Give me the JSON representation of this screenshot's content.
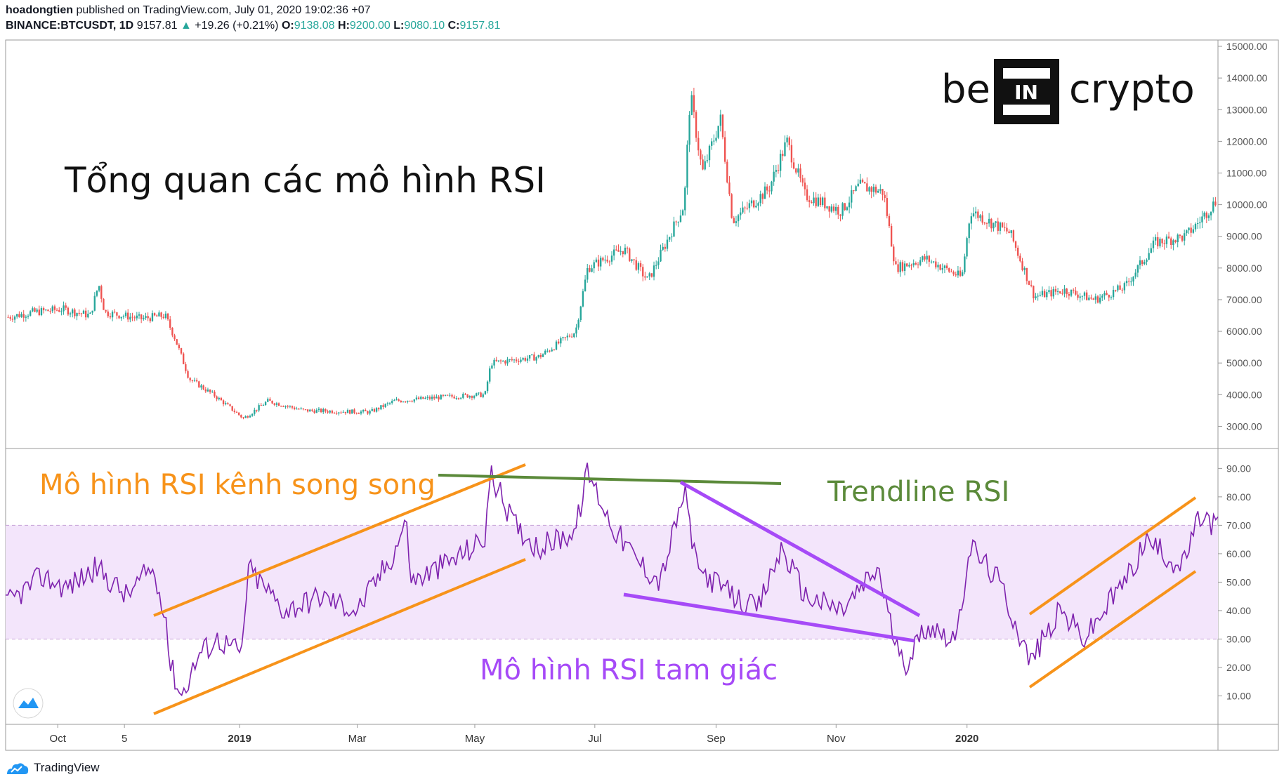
{
  "header": {
    "author": "hoadongtien",
    "published_text": "published on TradingView.com, July 01, 2020 19:02:36 +07",
    "symbol": "BINANCE:BTCUSDT, 1D",
    "last": "9157.81",
    "change": "+19.26 (+0.21%)",
    "o_label": "O:",
    "o_value": "9138.08",
    "h_label": "H:",
    "h_value": "9200.00",
    "l_label": "L:",
    "l_value": "9080.10",
    "c_label": "C:",
    "c_value": "9157.81"
  },
  "footer": {
    "brand": "TradingView",
    "brand_icon": "tradingview-cloud-icon"
  },
  "logo": {
    "left": "be",
    "mid": "IN",
    "right": "crypto"
  },
  "colors": {
    "up": "#26a69a",
    "down": "#ef5350",
    "rsi": "#7e22ae",
    "band": "#f3e5fb",
    "orange": "#f7931a",
    "green": "#5b8a3a",
    "purple": "#a64af7",
    "grid": "#b3b3b3"
  },
  "chart_data": [
    {
      "type": "candlestick",
      "title": "Tổng quan các mô hình RSI",
      "ylim": [
        2300,
        15200
      ],
      "y_ticks": [
        "3000.00",
        "4000.00",
        "5000.00",
        "6000.00",
        "7000.00",
        "8000.00",
        "9000.00",
        "10000.00",
        "11000.00",
        "12000.00",
        "13000.00",
        "14000.00",
        "15000.00"
      ],
      "x_ticks": [
        "Oct",
        "5",
        "2019",
        "Mar",
        "May",
        "Jul",
        "Sep",
        "Nov",
        "2020"
      ],
      "key_prices": [
        {
          "x": 0.0,
          "y": 6450
        },
        {
          "x": 0.02,
          "y": 6600
        },
        {
          "x": 0.045,
          "y": 6700
        },
        {
          "x": 0.068,
          "y": 6500
        },
        {
          "x": 0.075,
          "y": 7500
        },
        {
          "x": 0.08,
          "y": 6600
        },
        {
          "x": 0.11,
          "y": 6400
        },
        {
          "x": 0.13,
          "y": 6500
        },
        {
          "x": 0.138,
          "y": 5800
        },
        {
          "x": 0.15,
          "y": 4500
        },
        {
          "x": 0.17,
          "y": 4000
        },
        {
          "x": 0.195,
          "y": 3250
        },
        {
          "x": 0.215,
          "y": 3800
        },
        {
          "x": 0.245,
          "y": 3500
        },
        {
          "x": 0.3,
          "y": 3450
        },
        {
          "x": 0.32,
          "y": 3800
        },
        {
          "x": 0.37,
          "y": 3950
        },
        {
          "x": 0.395,
          "y": 4000
        },
        {
          "x": 0.4,
          "y": 5000
        },
        {
          "x": 0.44,
          "y": 5200
        },
        {
          "x": 0.47,
          "y": 6000
        },
        {
          "x": 0.48,
          "y": 8000
        },
        {
          "x": 0.51,
          "y": 8600
        },
        {
          "x": 0.53,
          "y": 7600
        },
        {
          "x": 0.56,
          "y": 10000
        },
        {
          "x": 0.565,
          "y": 13500
        },
        {
          "x": 0.575,
          "y": 11000
        },
        {
          "x": 0.59,
          "y": 12700
        },
        {
          "x": 0.6,
          "y": 9500
        },
        {
          "x": 0.63,
          "y": 10500
        },
        {
          "x": 0.645,
          "y": 12000
        },
        {
          "x": 0.66,
          "y": 10300
        },
        {
          "x": 0.69,
          "y": 9800
        },
        {
          "x": 0.705,
          "y": 10600
        },
        {
          "x": 0.725,
          "y": 10400
        },
        {
          "x": 0.735,
          "y": 8000
        },
        {
          "x": 0.76,
          "y": 8300
        },
        {
          "x": 0.79,
          "y": 7700
        },
        {
          "x": 0.797,
          "y": 9800
        },
        {
          "x": 0.83,
          "y": 9100
        },
        {
          "x": 0.85,
          "y": 7100
        },
        {
          "x": 0.875,
          "y": 7300
        },
        {
          "x": 0.9,
          "y": 7000
        },
        {
          "x": 0.925,
          "y": 7400
        },
        {
          "x": 0.95,
          "y": 8800
        },
        {
          "x": 0.975,
          "y": 9000
        },
        {
          "x": 0.985,
          "y": 9400
        },
        {
          "x": 1.0,
          "y": 10100
        }
      ]
    },
    {
      "type": "line",
      "ylim": [
        0,
        97
      ],
      "y_ticks": [
        "10.00",
        "20.00",
        "30.00",
        "40.00",
        "50.00",
        "60.00",
        "70.00",
        "80.00",
        "90.00"
      ],
      "band": [
        30,
        70
      ],
      "key_rsi": [
        {
          "x": 0.0,
          "y": 42
        },
        {
          "x": 0.03,
          "y": 52
        },
        {
          "x": 0.05,
          "y": 48
        },
        {
          "x": 0.075,
          "y": 55
        },
        {
          "x": 0.1,
          "y": 45
        },
        {
          "x": 0.12,
          "y": 55
        },
        {
          "x": 0.132,
          "y": 40
        },
        {
          "x": 0.135,
          "y": 22
        },
        {
          "x": 0.145,
          "y": 10
        },
        {
          "x": 0.16,
          "y": 25
        },
        {
          "x": 0.175,
          "y": 30
        },
        {
          "x": 0.195,
          "y": 25
        },
        {
          "x": 0.2,
          "y": 55
        },
        {
          "x": 0.23,
          "y": 40
        },
        {
          "x": 0.26,
          "y": 45
        },
        {
          "x": 0.29,
          "y": 40
        },
        {
          "x": 0.32,
          "y": 60
        },
        {
          "x": 0.33,
          "y": 72
        },
        {
          "x": 0.335,
          "y": 50
        },
        {
          "x": 0.37,
          "y": 58
        },
        {
          "x": 0.395,
          "y": 65
        },
        {
          "x": 0.4,
          "y": 88
        },
        {
          "x": 0.42,
          "y": 70
        },
        {
          "x": 0.44,
          "y": 62
        },
        {
          "x": 0.47,
          "y": 68
        },
        {
          "x": 0.48,
          "y": 89
        },
        {
          "x": 0.5,
          "y": 70
        },
        {
          "x": 0.52,
          "y": 58
        },
        {
          "x": 0.54,
          "y": 50
        },
        {
          "x": 0.56,
          "y": 82
        },
        {
          "x": 0.57,
          "y": 55
        },
        {
          "x": 0.6,
          "y": 45
        },
        {
          "x": 0.62,
          "y": 40
        },
        {
          "x": 0.64,
          "y": 62
        },
        {
          "x": 0.66,
          "y": 45
        },
        {
          "x": 0.69,
          "y": 40
        },
        {
          "x": 0.72,
          "y": 55
        },
        {
          "x": 0.73,
          "y": 35
        },
        {
          "x": 0.74,
          "y": 20
        },
        {
          "x": 0.76,
          "y": 35
        },
        {
          "x": 0.785,
          "y": 30
        },
        {
          "x": 0.795,
          "y": 63
        },
        {
          "x": 0.82,
          "y": 50
        },
        {
          "x": 0.845,
          "y": 22
        },
        {
          "x": 0.87,
          "y": 40
        },
        {
          "x": 0.89,
          "y": 30
        },
        {
          "x": 0.93,
          "y": 55
        },
        {
          "x": 0.94,
          "y": 65
        },
        {
          "x": 0.97,
          "y": 55
        },
        {
          "x": 0.985,
          "y": 73
        },
        {
          "x": 1.0,
          "y": 70
        }
      ]
    }
  ],
  "annotations": {
    "title": "Tổng quan các mô hình RSI",
    "channel": "Mô hình RSI kênh song song",
    "trendline": "Trendline RSI",
    "triangle": "Mô hình RSI tam giác"
  }
}
